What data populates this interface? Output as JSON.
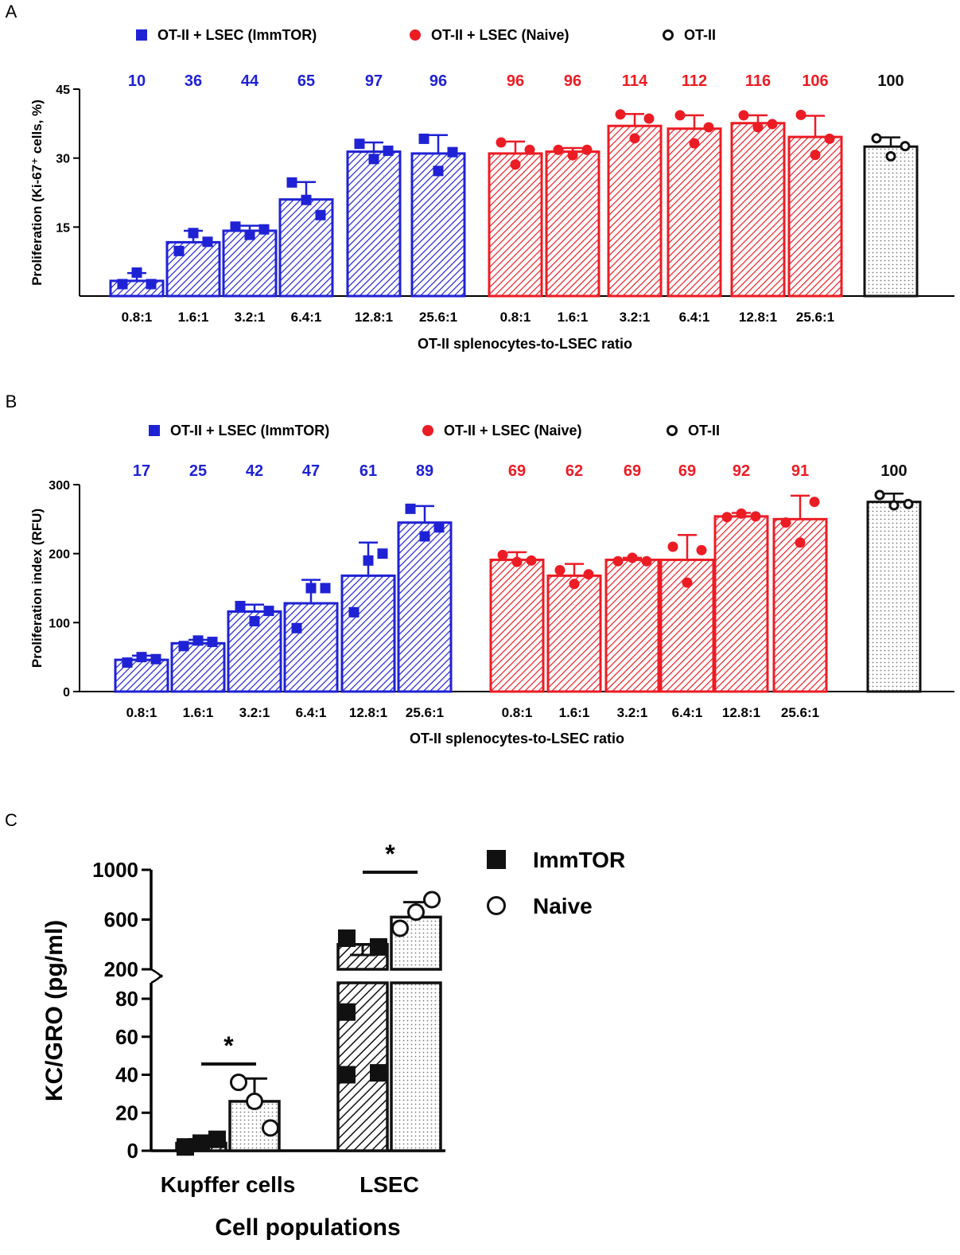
{
  "colors": {
    "immtor": "#1f22d4",
    "naive": "#ec1c24",
    "otii": "#111111",
    "axis": "#000000"
  },
  "chart_data": [
    {
      "panel": "A",
      "type": "bar",
      "ylabel": "Proliferation (Ki-67⁺ cells, %)",
      "xlabel": "OT-II splenocytes-to-LSEC ratio",
      "ylim": [
        0,
        45
      ],
      "yticks": [
        15,
        30,
        45
      ],
      "legend": [
        {
          "label": "OT-II + LSEC (ImmTOR)",
          "marker": "square",
          "color": "#1f22d4"
        },
        {
          "label": "OT-II + LSEC (Naive)",
          "marker": "circle",
          "color": "#ec1c24"
        },
        {
          "label": "OT-II",
          "marker": "open-circle",
          "color": "#111111"
        }
      ],
      "series": [
        {
          "name": "OT-II + LSEC (ImmTOR)",
          "categories": [
            "0.8:1",
            "1.6:1",
            "3.2:1",
            "6.4:1",
            "12.8:1",
            "25.6:1"
          ],
          "values": [
            3.3,
            11.7,
            14.2,
            21,
            31.4,
            31
          ],
          "errors": [
            1.7,
            2.5,
            1.1,
            3.8,
            2,
            4
          ],
          "points": [
            [
              2.6,
              5.1,
              2.6
            ],
            [
              9.8,
              13.7,
              11.8
            ],
            [
              15.1,
              13.3,
              14.5
            ],
            [
              24.7,
              20.9,
              17.6
            ],
            [
              33.1,
              29.8,
              31.6
            ],
            [
              34.2,
              27.2,
              31.3
            ]
          ],
          "annotations": [
            "10",
            "36",
            "44",
            "65",
            "97",
            "96"
          ]
        },
        {
          "name": "OT-II + LSEC (Naive)",
          "categories": [
            "0.8:1",
            "1.6:1",
            "3.2:1",
            "6.4:1",
            "12.8:1",
            "25.6:1"
          ],
          "values": [
            31,
            31.4,
            37,
            36.4,
            37.6,
            34.6
          ],
          "errors": [
            2.6,
            0.8,
            2.6,
            2.9,
            1.7,
            4.6
          ],
          "points": [
            [
              33.4,
              28.6,
              31.8
            ],
            [
              31.8,
              30.6,
              31.8
            ],
            [
              39.5,
              34.3,
              38.6
            ],
            [
              39.3,
              33.2,
              36.7
            ],
            [
              39.3,
              36.7,
              37.4
            ],
            [
              39.4,
              30.7,
              34.2
            ]
          ],
          "annotations": [
            "96",
            "96",
            "114",
            "112",
            "116",
            "106"
          ]
        },
        {
          "name": "OT-II",
          "categories": [
            ""
          ],
          "values": [
            32.5
          ],
          "errors": [
            2
          ],
          "points": [
            [
              34.3,
              30.4,
              32.6
            ]
          ],
          "annotations": [
            "100"
          ]
        }
      ]
    },
    {
      "panel": "B",
      "type": "bar",
      "ylabel": "Proliferation index (RFU)",
      "xlabel": "OT-II splenocytes-to-LSEC ratio",
      "ylim": [
        0,
        300
      ],
      "yticks": [
        0,
        100,
        200,
        300
      ],
      "legend": [
        {
          "label": "OT-II + LSEC (ImmTOR)",
          "marker": "square",
          "color": "#1f22d4"
        },
        {
          "label": "OT-II + LSEC (Naive)",
          "marker": "circle",
          "color": "#ec1c24"
        },
        {
          "label": "OT-II",
          "marker": "open-circle",
          "color": "#111111"
        }
      ],
      "series": [
        {
          "name": "OT-II + LSEC (ImmTOR)",
          "categories": [
            "0.8:1",
            "1.6:1",
            "3.2:1",
            "6.4:1",
            "12.8:1",
            "25.6:1"
          ],
          "values": [
            46,
            70,
            116,
            128,
            168,
            245
          ],
          "errors": [
            6,
            5,
            10,
            34,
            48,
            24
          ],
          "points": [
            [
              42,
              50,
              47
            ],
            [
              66,
              74,
              72
            ],
            [
              124,
              102,
              117
            ],
            [
              92,
              150,
              150
            ],
            [
              115,
              190,
              200
            ],
            [
              265,
              225,
              238
            ]
          ],
          "annotations": [
            "17",
            "25",
            "42",
            "47",
            "61",
            "89"
          ]
        },
        {
          "name": "OT-II + LSEC (Naive)",
          "categories": [
            "0.8:1",
            "1.6:1",
            "3.2:1",
            "6.4:1",
            "12.8:1",
            "25.6:1"
          ],
          "values": [
            191,
            168,
            191,
            191,
            254,
            250
          ],
          "errors": [
            11,
            17,
            3,
            36,
            5,
            34
          ],
          "points": [
            [
              198,
              188,
              190
            ],
            [
              176,
              156,
              170
            ],
            [
              189,
              194,
              189
            ],
            [
              210,
              158,
              205
            ],
            [
              253,
              258,
              254
            ],
            [
              245,
              216,
              275
            ]
          ],
          "annotations": [
            "69",
            "62",
            "69",
            "69",
            "92",
            "91"
          ]
        },
        {
          "name": "OT-II",
          "categories": [
            ""
          ],
          "values": [
            275
          ],
          "errors": [
            12
          ],
          "points": [
            [
              285,
              270,
              272
            ]
          ],
          "annotations": [
            "100"
          ]
        }
      ]
    },
    {
      "panel": "C",
      "type": "bar",
      "ylabel": "KC/GRO (pg/ml)",
      "xlabel": "Cell populations",
      "y_axis_break": {
        "lower": [
          0,
          80
        ],
        "upper": [
          200,
          1000
        ]
      },
      "yticks_lower": [
        0,
        20,
        40,
        60,
        80
      ],
      "yticks_upper": [
        200,
        600,
        1000
      ],
      "categories": [
        "Kupffer cells",
        "LSEC"
      ],
      "legend": [
        {
          "label": "ImmTOR",
          "marker": "filled-square",
          "color": "#111111"
        },
        {
          "label": "Naive",
          "marker": "open-circle",
          "color": "#111111"
        }
      ],
      "series": [
        {
          "name": "ImmTOR",
          "values": [
            4,
            400
          ],
          "errors": [
            2,
            85
          ],
          "points": [
            [
              2,
              6,
              4
            ],
            [
              450,
              380,
              73,
              40,
              41
            ]
          ]
        },
        {
          "name": "Naive",
          "values": [
            26,
            620
          ],
          "errors": [
            12,
            120
          ],
          "points": [
            [
              36,
              12,
              26
            ],
            [
              530,
              760,
              660
            ]
          ]
        }
      ],
      "significance": [
        {
          "between": "Kupffer cells",
          "label": "*"
        },
        {
          "between": "LSEC",
          "label": "*"
        }
      ]
    }
  ],
  "panel_labels": [
    "A",
    "B",
    "C"
  ]
}
